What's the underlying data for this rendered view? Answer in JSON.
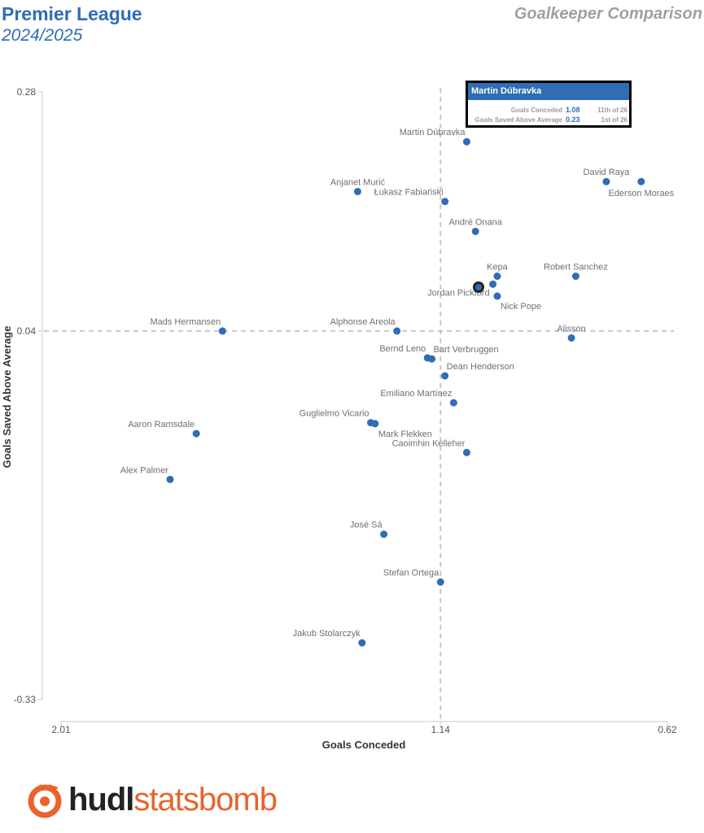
{
  "header": {
    "league": "Premier League",
    "season": "2024/2025",
    "subtitle": "Goalkeeper Comparison"
  },
  "tooltip": {
    "name": "Martin Dúbravka",
    "rows": [
      {
        "label": "Goals Conceded",
        "value": "1.08",
        "rank": "11th of 26"
      },
      {
        "label": "Goals Saved Above Average",
        "value": "0.23",
        "rank": "1st of 26"
      }
    ]
  },
  "logo": {
    "part1": "hudl",
    "part2": "statsbomb"
  },
  "colors": {
    "point": "#2f6db5",
    "highlight_point": "#222222",
    "grid": "#c8c8c8",
    "brand": "#2f6db5",
    "logo_accent": "#e8642c"
  },
  "chart_data": {
    "type": "scatter",
    "xlabel": "Goals Conceded",
    "ylabel": "Goals Saved Above Average",
    "x_reversed": true,
    "xlim": [
      2.01,
      0.62
    ],
    "ylim": [
      -0.33,
      0.28
    ],
    "x_ticks": [
      "2.01",
      "1.14",
      "0.62"
    ],
    "y_ticks": [
      "0.28",
      "0.04",
      "-0.33"
    ],
    "reference_lines": {
      "x": 1.14,
      "y": 0.04
    },
    "highlighted": "Martin Dúbravka",
    "points": [
      {
        "name": "Martin Dúbravka",
        "x": 1.08,
        "y": 0.23,
        "label_pos": "top-left"
      },
      {
        "name": "David Raya",
        "x": 0.76,
        "y": 0.19,
        "label_pos": "top"
      },
      {
        "name": "Ederson Moraes",
        "x": 0.68,
        "y": 0.19,
        "label_pos": "bottom"
      },
      {
        "name": "Anjanet Murić",
        "x": 1.33,
        "y": 0.18,
        "label_pos": "top"
      },
      {
        "name": "Łukasz Fabiański",
        "x": 1.13,
        "y": 0.17,
        "label_pos": "top-left"
      },
      {
        "name": "André Onana",
        "x": 1.06,
        "y": 0.14,
        "label_pos": "top"
      },
      {
        "name": "Kepa",
        "x": 1.01,
        "y": 0.095,
        "label_pos": "top"
      },
      {
        "name": "Robert Sanchez",
        "x": 0.83,
        "y": 0.095,
        "label_pos": "top"
      },
      {
        "name": "Jordan Pickford",
        "x": 1.02,
        "y": 0.087,
        "label_pos": "bottom-left"
      },
      {
        "name": "Nick Pope",
        "x": 1.01,
        "y": 0.075,
        "label_pos": "bottom-right"
      },
      {
        "name": "Mads Hermansen",
        "x": 1.64,
        "y": 0.04,
        "label_pos": "top-left"
      },
      {
        "name": "Alphonse Areola",
        "x": 1.24,
        "y": 0.04,
        "label_pos": "top-left"
      },
      {
        "name": "Alisson",
        "x": 0.84,
        "y": 0.033,
        "label_pos": "top"
      },
      {
        "name": "Bernd Leno",
        "x": 1.17,
        "y": 0.013,
        "label_pos": "top-left"
      },
      {
        "name": "Bart Verbruggen",
        "x": 1.16,
        "y": 0.012,
        "label_pos": "top-right"
      },
      {
        "name": "Dean Henderson",
        "x": 1.13,
        "y": -0.005,
        "label_pos": "top-right"
      },
      {
        "name": "Emiliano Martínez",
        "x": 1.11,
        "y": -0.032,
        "label_pos": "top-left"
      },
      {
        "name": "Guglielmo Vicario",
        "x": 1.3,
        "y": -0.052,
        "label_pos": "top-left"
      },
      {
        "name": "Mark Flekken",
        "x": 1.29,
        "y": -0.053,
        "label_pos": "bottom-right"
      },
      {
        "name": "Caoimhin Kelleher",
        "x": 1.08,
        "y": -0.082,
        "label_pos": "top-left"
      },
      {
        "name": "Aaron Ramsdale",
        "x": 1.7,
        "y": -0.063,
        "label_pos": "top-left"
      },
      {
        "name": "Alex Palmer",
        "x": 1.76,
        "y": -0.109,
        "label_pos": "top-left"
      },
      {
        "name": "José Sá",
        "x": 1.27,
        "y": -0.164,
        "label_pos": "top-left"
      },
      {
        "name": "Stefan Ortega",
        "x": 1.14,
        "y": -0.212,
        "label_pos": "top-left"
      },
      {
        "name": "Jakub Stolarczyk",
        "x": 1.32,
        "y": -0.273,
        "label_pos": "top-left"
      }
    ]
  }
}
